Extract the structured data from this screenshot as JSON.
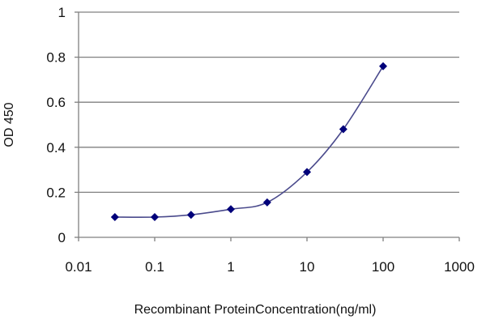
{
  "chart_data": {
    "type": "line",
    "xlabel": "Recombinant ProteinConcentration(ng/ml)",
    "ylabel": "OD 450",
    "xscale": "log",
    "xlim": [
      0.01,
      1000
    ],
    "ylim": [
      0,
      1
    ],
    "xticks": [
      0.01,
      0.1,
      1,
      10,
      100,
      1000
    ],
    "xtick_labels": [
      "0.01",
      "0.1",
      "1",
      "10",
      "100",
      "1000"
    ],
    "yticks": [
      0,
      0.2,
      0.4,
      0.6,
      0.8,
      1
    ],
    "ytick_labels": [
      "0",
      "0.2",
      "0.4",
      "0.6",
      "0.8",
      "1"
    ],
    "grid": "horizontal",
    "series": [
      {
        "x": [
          0.03,
          0.1,
          0.3,
          1,
          3,
          10,
          30,
          100
        ],
        "y": [
          0.09,
          0.09,
          0.1,
          0.125,
          0.155,
          0.29,
          0.48,
          0.76
        ]
      }
    ],
    "colors": {
      "line": "#4a4a8c",
      "marker": "#00007a",
      "grid": "#808080",
      "plot_background": "#ffffff"
    }
  }
}
